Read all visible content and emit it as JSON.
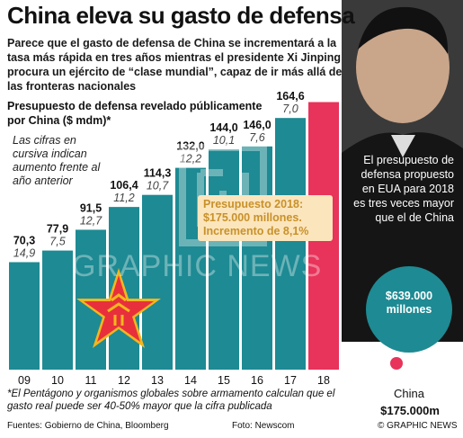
{
  "title": "China eleva su gasto de defensa",
  "subtitle": "Parece que el gasto de defensa de China se incrementará a la tasa más rápida en tres años mientras el presidente Xi Jinping procura un ejército de “clase mundial”, capaz de ir más allá de las fronteras nacionales",
  "colors": {
    "bar": "#1e8a93",
    "highlight_bar": "#e8335a",
    "callout_bg": "#fbe5bd",
    "callout_text": "#c8912a",
    "star": "#e8303d",
    "star_rim": "#f3b71d"
  },
  "icons": [
    "pla-star-emblem",
    "graphic-news-logo"
  ],
  "chart_data": {
    "type": "bar",
    "title": "Presupuesto de defensa revelado públicamente por China ($ mdm)*",
    "note": "Las cifras en cursiva indican aumento frente al año anterior",
    "categories": [
      "09",
      "10",
      "11",
      "12",
      "13",
      "14",
      "15",
      "16",
      "17",
      "18"
    ],
    "values": [
      70.3,
      77.9,
      91.5,
      106.4,
      114.3,
      132.0,
      144.0,
      146.0,
      164.6,
      175.0
    ],
    "value_labels": [
      "70,3",
      "77,9",
      "91,5",
      "106,4",
      "114,3",
      "132,0",
      "144,0",
      "146,0",
      "164,6",
      ""
    ],
    "growth_labels": [
      "14,9",
      "7,5",
      "12,7",
      "11,2",
      "10,7",
      "12,2",
      "10,1",
      "7,6",
      "7,0",
      ""
    ],
    "highlight_index": 9,
    "callout": [
      "Presupuesto 2018:",
      "$175.000 millones.",
      "Incremento de 8,1%"
    ]
  },
  "comparison": {
    "text": "El presupuesto de defensa propuesto en EUA para 2018 es tres veces mayor que el de China",
    "usa_value": "$639.000 millones",
    "china_name": "China",
    "china_value": "$175.000m"
  },
  "footnote": "*El Pentágono y organismos globales sobre armamento calculan que el gasto real puede ser 40-50% mayor que la cifra publicada",
  "sources": "Fuentes: Gobierno de China, Bloomberg",
  "photo_credit": "Foto: Newscom",
  "copyright": "© GRAPHIC NEWS",
  "watermark": "GRAPHIC NEWS"
}
